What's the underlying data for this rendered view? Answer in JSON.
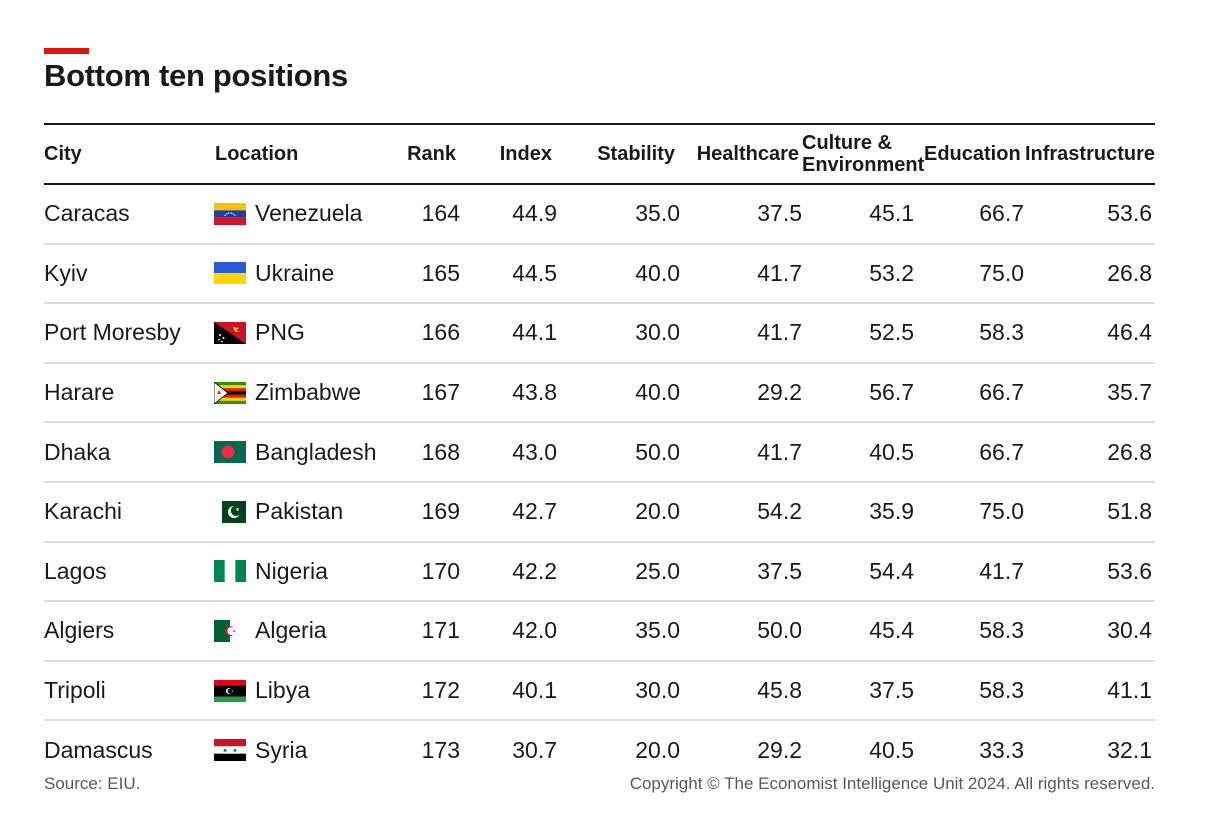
{
  "title": "Bottom ten positions",
  "colors": {
    "accent": "#e3120b"
  },
  "chart_data": {
    "type": "table",
    "title": "Bottom ten positions",
    "columns": [
      "City",
      "Location",
      "Rank",
      "Index",
      "Stability",
      "Healthcare",
      "Culture & Environment",
      "Education",
      "Infrastructure"
    ],
    "rows": [
      {
        "city": "Caracas",
        "location": "Venezuela",
        "flag": "venezuela-flag-icon",
        "rank": "164",
        "index": "44.9",
        "stability": "35.0",
        "healthcare": "37.5",
        "culture": "45.1",
        "education": "66.7",
        "infrastructure": "53.6"
      },
      {
        "city": "Kyiv",
        "location": "Ukraine",
        "flag": "ukraine-flag-icon",
        "rank": "165",
        "index": "44.5",
        "stability": "40.0",
        "healthcare": "41.7",
        "culture": "53.2",
        "education": "75.0",
        "infrastructure": "26.8"
      },
      {
        "city": "Port Moresby",
        "location": "PNG",
        "flag": "png-flag-icon",
        "rank": "166",
        "index": "44.1",
        "stability": "30.0",
        "healthcare": "41.7",
        "culture": "52.5",
        "education": "58.3",
        "infrastructure": "46.4"
      },
      {
        "city": "Harare",
        "location": "Zimbabwe",
        "flag": "zimbabwe-flag-icon",
        "rank": "167",
        "index": "43.8",
        "stability": "40.0",
        "healthcare": "29.2",
        "culture": "56.7",
        "education": "66.7",
        "infrastructure": "35.7"
      },
      {
        "city": "Dhaka",
        "location": "Bangladesh",
        "flag": "bangladesh-flag-icon",
        "rank": "168",
        "index": "43.0",
        "stability": "50.0",
        "healthcare": "41.7",
        "culture": "40.5",
        "education": "66.7",
        "infrastructure": "26.8"
      },
      {
        "city": "Karachi",
        "location": "Pakistan",
        "flag": "pakistan-flag-icon",
        "rank": "169",
        "index": "42.7",
        "stability": "20.0",
        "healthcare": "54.2",
        "culture": "35.9",
        "education": "75.0",
        "infrastructure": "51.8"
      },
      {
        "city": "Lagos",
        "location": "Nigeria",
        "flag": "nigeria-flag-icon",
        "rank": "170",
        "index": "42.2",
        "stability": "25.0",
        "healthcare": "37.5",
        "culture": "54.4",
        "education": "41.7",
        "infrastructure": "53.6"
      },
      {
        "city": "Algiers",
        "location": "Algeria",
        "flag": "algeria-flag-icon",
        "rank": "171",
        "index": "42.0",
        "stability": "35.0",
        "healthcare": "50.0",
        "culture": "45.4",
        "education": "58.3",
        "infrastructure": "30.4"
      },
      {
        "city": "Tripoli",
        "location": "Libya",
        "flag": "libya-flag-icon",
        "rank": "172",
        "index": "40.1",
        "stability": "30.0",
        "healthcare": "45.8",
        "culture": "37.5",
        "education": "58.3",
        "infrastructure": "41.1"
      },
      {
        "city": "Damascus",
        "location": "Syria",
        "flag": "syria-flag-icon",
        "rank": "173",
        "index": "30.7",
        "stability": "20.0",
        "healthcare": "29.2",
        "culture": "40.5",
        "education": "33.3",
        "infrastructure": "32.1"
      }
    ]
  },
  "footer": {
    "source": "Source: EIU.",
    "copyright": "Copyright © The Economist Intelligence Unit 2024. All rights reserved."
  }
}
